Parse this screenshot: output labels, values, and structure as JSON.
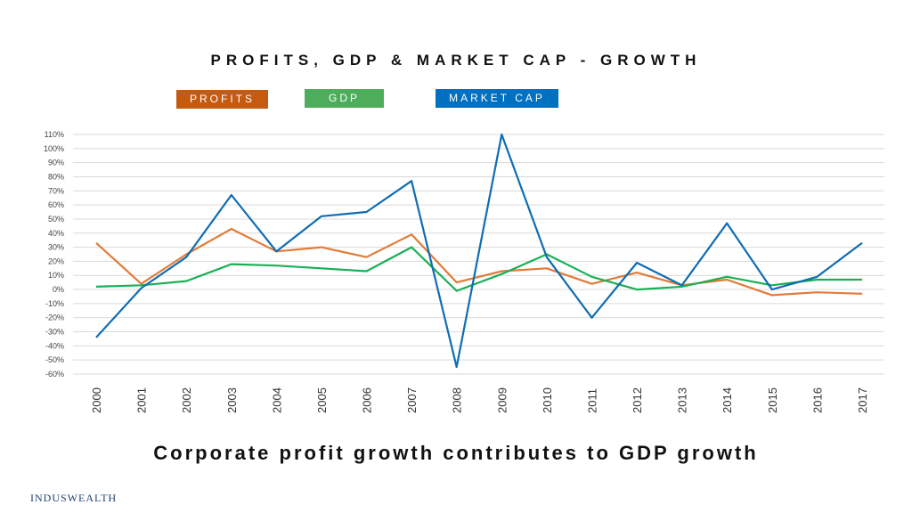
{
  "slide": {
    "title": "PROFITS, GDP & MARKET CAP - GROWTH",
    "subtitle": "Corporate profit growth contributes to GDP growth",
    "brand": "INDUSWEALTH"
  },
  "colors": {
    "profits": "#E07B39",
    "profits_legend": "#C55A11",
    "gdp": "#1AAF54",
    "gdp_legend": "#4EAD5B",
    "market_cap": "#0F6DB3",
    "market_cap_legend": "#0070C0",
    "grid": "#D9D9D9"
  },
  "chart_data": {
    "type": "line",
    "title": "PROFITS, GDP & MARKET CAP - GROWTH",
    "categories": [
      "2000",
      "2001",
      "2002",
      "2003",
      "2004",
      "2005",
      "2006",
      "2007",
      "2008",
      "2009",
      "2010",
      "2011",
      "2012",
      "2013",
      "2014",
      "2015",
      "2016",
      "2017"
    ],
    "series": [
      {
        "name": "PROFITS",
        "color_key": "profits",
        "legend_color_key": "profits_legend",
        "values": [
          33,
          4,
          25,
          43,
          27,
          30,
          23,
          39,
          5,
          13,
          15,
          4,
          12,
          3,
          7,
          -4,
          -2,
          -3
        ]
      },
      {
        "name": "GDP",
        "color_key": "gdp",
        "legend_color_key": "gdp_legend",
        "values": [
          2,
          3,
          6,
          18,
          17,
          15,
          13,
          30,
          -1,
          11,
          25,
          9,
          0,
          2,
          9,
          3,
          7,
          7
        ]
      },
      {
        "name": "MARKET CAP",
        "color_key": "market_cap",
        "legend_color_key": "market_cap_legend",
        "values": [
          -34,
          1,
          23,
          67,
          27,
          52,
          55,
          77,
          -55,
          110,
          23,
          -20,
          19,
          3,
          47,
          0,
          9,
          33
        ]
      }
    ],
    "ylim": [
      -60,
      110
    ],
    "ytick_step": 10,
    "ytick_format": "percent",
    "grid": true,
    "legend_position": "top"
  }
}
